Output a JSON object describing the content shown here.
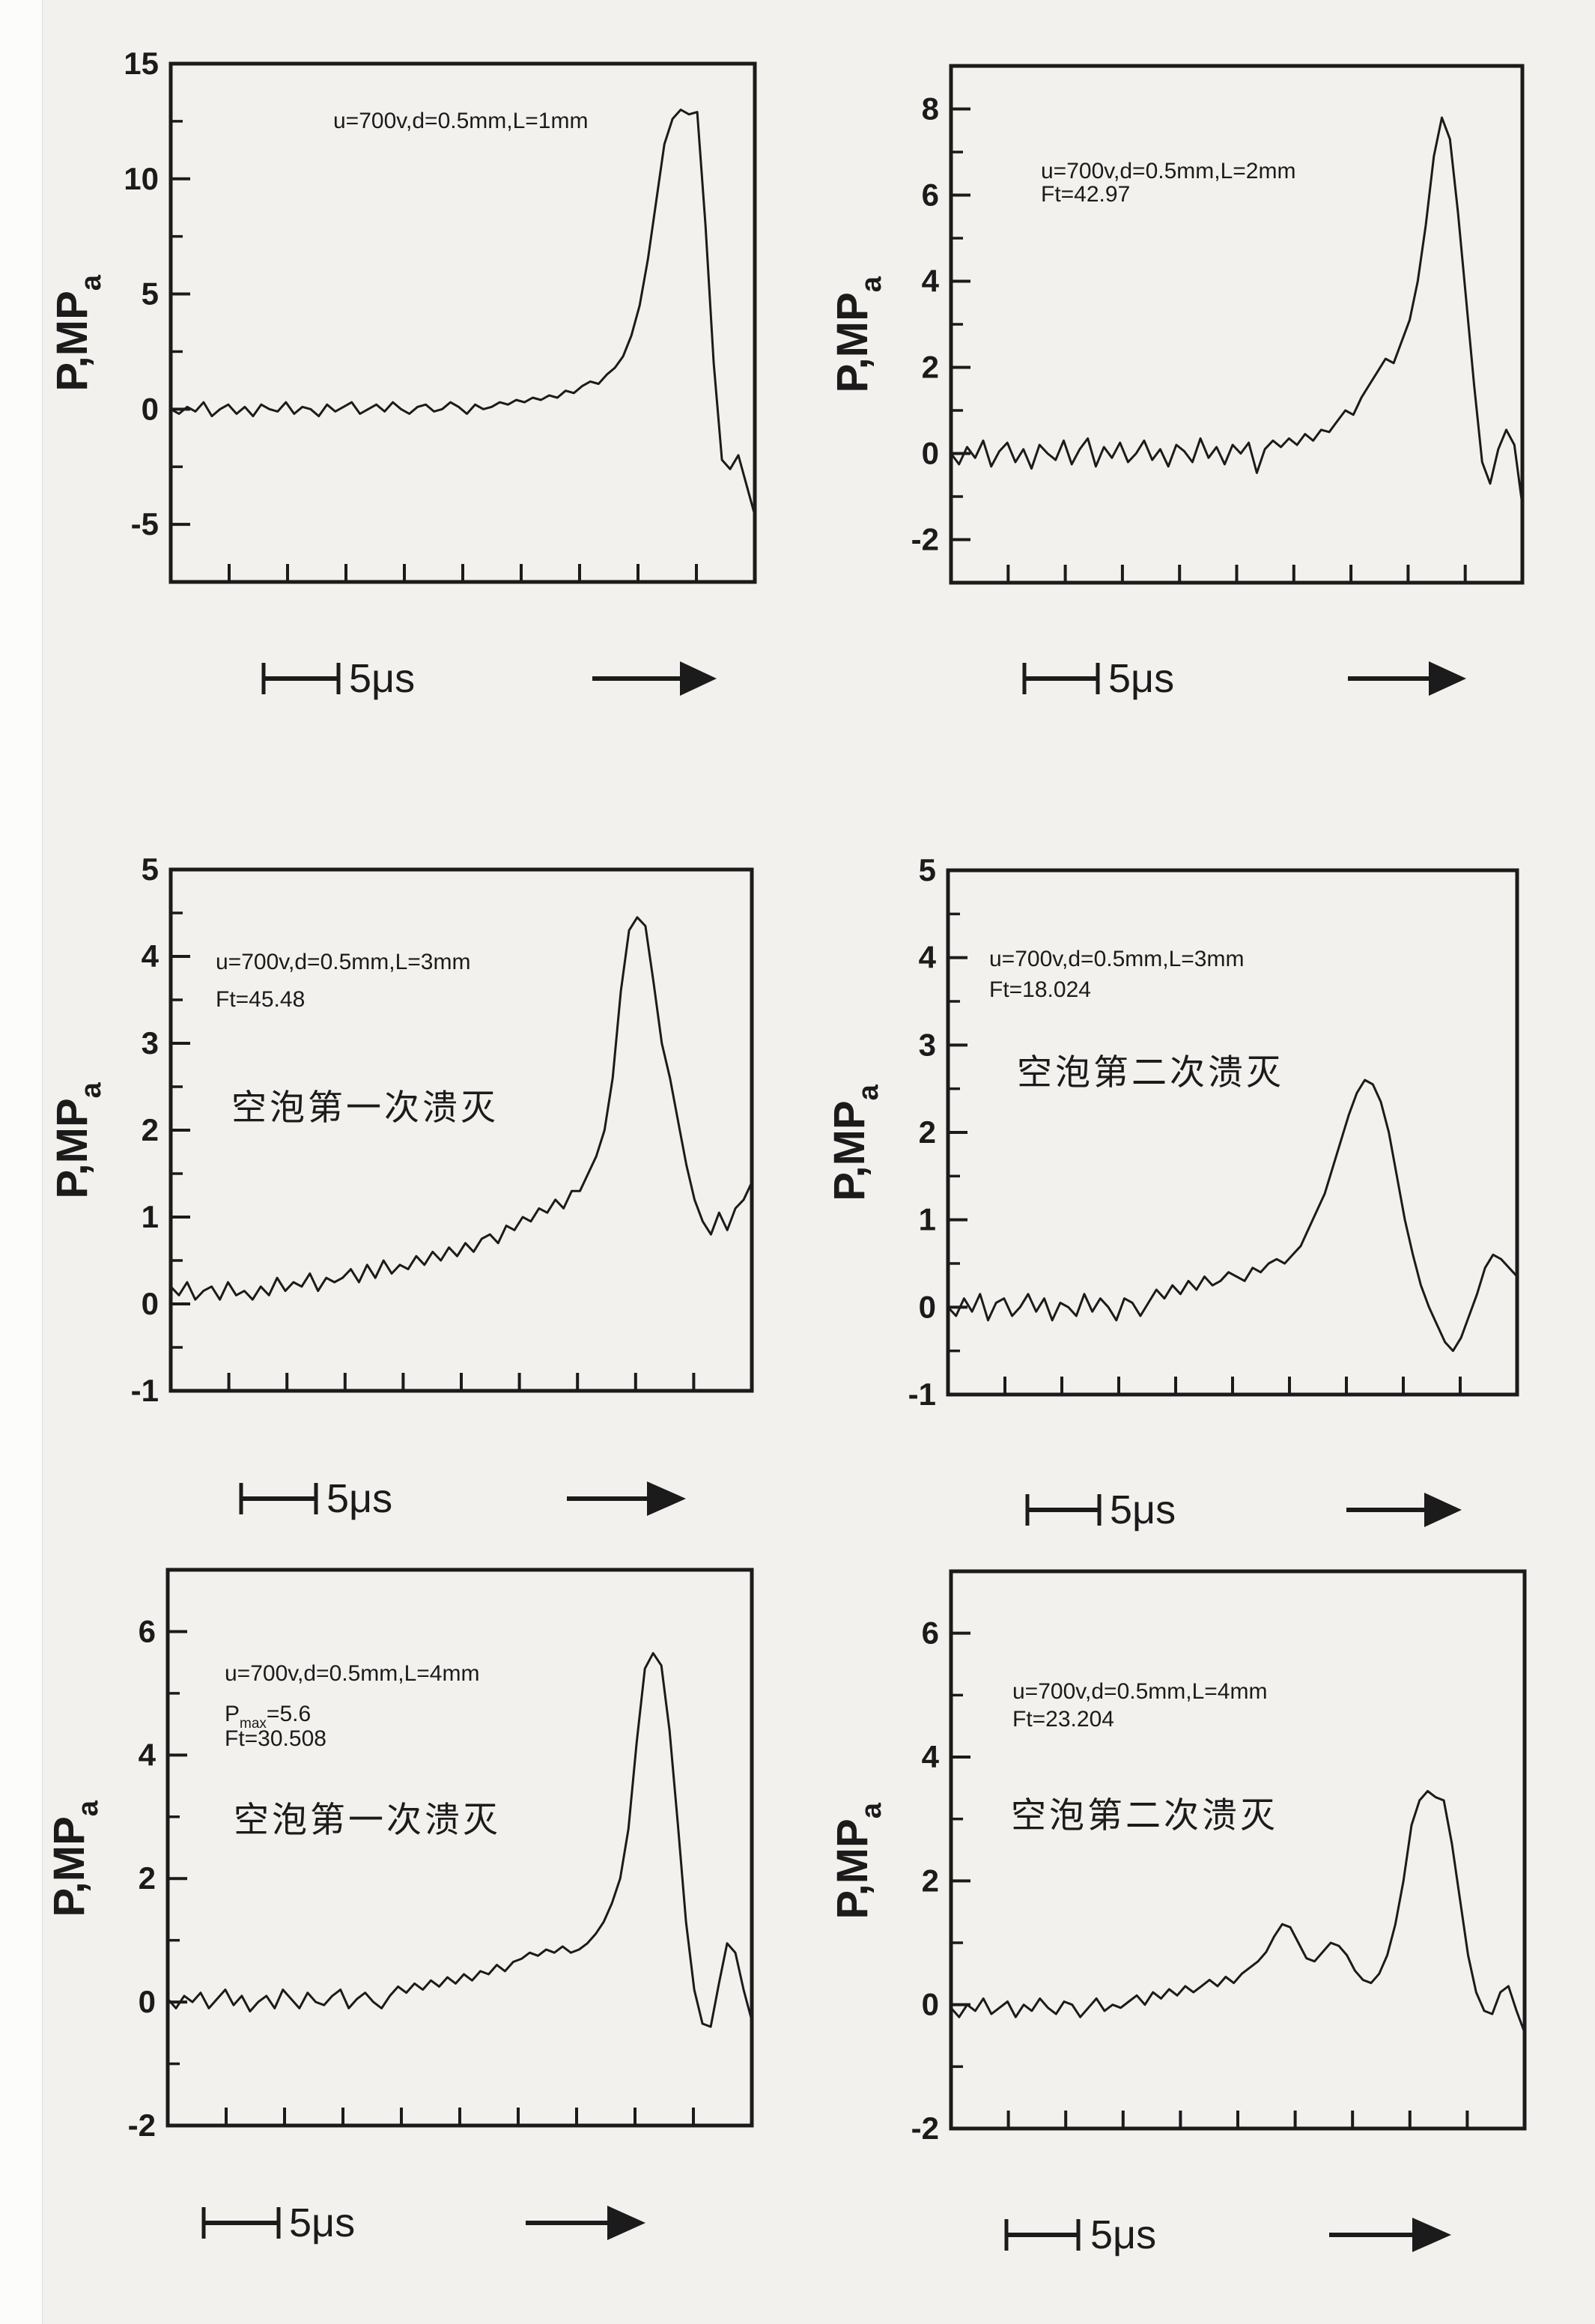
{
  "page": {
    "ink": "#1b1b1b",
    "paper_bg": "#f3f1ee",
    "edge_bg": "#fcfcfb"
  },
  "ylabel": {
    "main": "P,MP",
    "sub": "a"
  },
  "scale_label": "5μs",
  "chart_data": [
    {
      "type": "line",
      "title": "",
      "ylabel": "P,MPa",
      "xlabel": "",
      "x_scale_bar": "5μs",
      "params": [
        {
          "text": "u=700v,d=0.5mm,L=1mm"
        }
      ],
      "annotation": "",
      "ylim": [
        -7.5,
        15
      ],
      "yticks_major": [
        15,
        10,
        5,
        0,
        -5
      ],
      "yticks_minor": [
        12.5,
        7.5,
        2.5,
        -2.5
      ],
      "xticks_unlabeled": 9,
      "x_range_percent": [
        0,
        100
      ],
      "values": [
        0.0,
        -0.2,
        0.1,
        -0.1,
        0.3,
        -0.3,
        0.0,
        0.2,
        -0.2,
        0.1,
        -0.3,
        0.2,
        0.0,
        -0.1,
        0.3,
        -0.2,
        0.1,
        0.0,
        -0.3,
        0.2,
        -0.1,
        0.1,
        0.3,
        -0.2,
        0.0,
        0.2,
        -0.1,
        0.3,
        0.0,
        -0.2,
        0.1,
        0.2,
        -0.1,
        0.0,
        0.3,
        0.1,
        -0.2,
        0.2,
        0.0,
        0.1,
        0.3,
        0.2,
        0.4,
        0.3,
        0.5,
        0.4,
        0.6,
        0.5,
        0.8,
        0.7,
        1.0,
        1.2,
        1.1,
        1.5,
        1.8,
        2.3,
        3.2,
        4.5,
        6.5,
        9.0,
        11.5,
        12.6,
        13.0,
        12.8,
        12.9,
        8.0,
        2.0,
        -2.2,
        -2.6,
        -2.0,
        -3.3,
        -4.6
      ],
      "layout": {
        "param_fx": 0.278,
        "param_fys": [
          0.124
        ],
        "cn_fx": 0,
        "cn_fy": 0
      }
    },
    {
      "type": "line",
      "title": "",
      "ylabel": "P,MPa",
      "xlabel": "",
      "x_scale_bar": "5μs",
      "params": [
        {
          "text": "u=700v,d=0.5mm,L=2mm"
        },
        {
          "text": "Ft=42.97"
        }
      ],
      "annotation": "",
      "ylim": [
        -3,
        9
      ],
      "yticks_major": [
        8,
        6,
        4,
        2,
        0,
        -2
      ],
      "yticks_minor": [
        7,
        5,
        3,
        1,
        -1
      ],
      "xticks_unlabeled": 9,
      "x_range_percent": [
        0,
        100
      ],
      "values": [
        0.0,
        -0.25,
        0.15,
        -0.1,
        0.3,
        -0.3,
        0.05,
        0.25,
        -0.2,
        0.1,
        -0.35,
        0.2,
        0.0,
        -0.15,
        0.3,
        -0.25,
        0.1,
        0.35,
        -0.3,
        0.15,
        -0.1,
        0.25,
        -0.2,
        0.0,
        0.3,
        -0.15,
        0.1,
        -0.3,
        0.2,
        0.05,
        -0.2,
        0.35,
        -0.1,
        0.15,
        -0.25,
        0.2,
        0.0,
        0.25,
        -0.45,
        0.1,
        0.3,
        0.15,
        0.35,
        0.2,
        0.45,
        0.3,
        0.55,
        0.5,
        0.75,
        1.0,
        0.9,
        1.3,
        1.6,
        1.9,
        2.2,
        2.1,
        2.6,
        3.1,
        4.0,
        5.3,
        6.9,
        7.8,
        7.3,
        5.6,
        3.6,
        1.6,
        -0.2,
        -0.7,
        0.1,
        0.55,
        0.2,
        -1.2
      ],
      "layout": {
        "param_fx": 0.157,
        "param_fys": [
          0.217,
          0.263
        ],
        "cn_fx": 0,
        "cn_fy": 0
      }
    },
    {
      "type": "line",
      "title": "",
      "ylabel": "P,MPa",
      "xlabel": "",
      "x_scale_bar": "5μs",
      "params": [
        {
          "text": "u=700v,d=0.5mm,L=3mm"
        },
        {
          "text": "Ft=45.48"
        }
      ],
      "annotation": "空泡第一次溃灭",
      "ylim": [
        -1,
        5
      ],
      "yticks_major": [
        5,
        4,
        3,
        2,
        1,
        0,
        -1
      ],
      "yticks_minor": [
        4.5,
        3.5,
        2.5,
        1.5,
        0.5,
        -0.5
      ],
      "xticks_unlabeled": 9,
      "x_range_percent": [
        0,
        100
      ],
      "values": [
        0.2,
        0.1,
        0.25,
        0.05,
        0.15,
        0.2,
        0.05,
        0.25,
        0.1,
        0.15,
        0.05,
        0.2,
        0.1,
        0.3,
        0.15,
        0.25,
        0.2,
        0.35,
        0.15,
        0.3,
        0.25,
        0.3,
        0.4,
        0.25,
        0.45,
        0.3,
        0.5,
        0.35,
        0.45,
        0.4,
        0.55,
        0.45,
        0.6,
        0.5,
        0.65,
        0.55,
        0.7,
        0.6,
        0.75,
        0.8,
        0.7,
        0.9,
        0.85,
        1.0,
        0.95,
        1.1,
        1.05,
        1.2,
        1.1,
        1.3,
        1.3,
        1.5,
        1.7,
        2.0,
        2.6,
        3.6,
        4.3,
        4.45,
        4.35,
        3.7,
        3.0,
        2.6,
        2.1,
        1.6,
        1.2,
        0.95,
        0.8,
        1.05,
        0.85,
        1.1,
        1.2,
        1.4
      ],
      "layout": {
        "param_fx": 0.077,
        "param_fys": [
          0.191,
          0.263
        ],
        "cn_fx": 0.104,
        "cn_fy": 0.48
      }
    },
    {
      "type": "line",
      "title": "",
      "ylabel": "P,MPa",
      "xlabel": "",
      "x_scale_bar": "5μs",
      "params": [
        {
          "text": "u=700v,d=0.5mm,L=3mm"
        },
        {
          "text": "Ft=18.024"
        }
      ],
      "annotation": "空泡第二次溃灭",
      "ylim": [
        -1,
        5
      ],
      "yticks_major": [
        5,
        4,
        3,
        2,
        1,
        0,
        -1
      ],
      "yticks_minor": [
        4.5,
        3.5,
        2.5,
        1.5,
        0.5,
        -0.5
      ],
      "xticks_unlabeled": 9,
      "x_range_percent": [
        0,
        100
      ],
      "values": [
        0.0,
        -0.1,
        0.1,
        -0.05,
        0.15,
        -0.15,
        0.05,
        0.1,
        -0.1,
        0.0,
        0.15,
        -0.05,
        0.1,
        -0.15,
        0.05,
        0.0,
        -0.1,
        0.15,
        -0.05,
        0.1,
        0.0,
        -0.15,
        0.1,
        0.05,
        -0.1,
        0.05,
        0.2,
        0.1,
        0.25,
        0.15,
        0.3,
        0.2,
        0.35,
        0.25,
        0.3,
        0.4,
        0.35,
        0.3,
        0.45,
        0.4,
        0.5,
        0.55,
        0.5,
        0.6,
        0.7,
        0.9,
        1.1,
        1.3,
        1.6,
        1.9,
        2.2,
        2.45,
        2.6,
        2.55,
        2.35,
        2.0,
        1.5,
        1.0,
        0.6,
        0.25,
        0.0,
        -0.2,
        -0.4,
        -0.5,
        -0.35,
        -0.1,
        0.15,
        0.45,
        0.6,
        0.55,
        0.45,
        0.35
      ],
      "layout": {
        "param_fx": 0.072,
        "param_fys": [
          0.183,
          0.242
        ],
        "cn_fx": 0.121,
        "cn_fy": 0.408
      }
    },
    {
      "type": "line",
      "title": "",
      "ylabel": "P,MPa",
      "xlabel": "",
      "x_scale_bar": "5μs",
      "params": [
        {
          "text": "u=700v,d=0.5mm,L=4mm"
        },
        {
          "pre": "P",
          "sub": "max",
          "post": "=5.6"
        },
        {
          "text": "Ft=30.508"
        }
      ],
      "annotation": "空泡第一次溃灭",
      "ylim": [
        -2,
        7
      ],
      "yticks_major": [
        6,
        4,
        2,
        0,
        -2
      ],
      "yticks_minor": [
        5,
        3,
        1,
        -1
      ],
      "xticks_unlabeled": 9,
      "x_range_percent": [
        0,
        100
      ],
      "values": [
        0.05,
        -0.1,
        0.1,
        0.0,
        0.15,
        -0.1,
        0.05,
        0.2,
        -0.05,
        0.1,
        -0.15,
        0.0,
        0.1,
        -0.1,
        0.2,
        0.05,
        -0.1,
        0.15,
        0.0,
        -0.05,
        0.1,
        0.2,
        -0.1,
        0.05,
        0.15,
        0.0,
        -0.1,
        0.1,
        0.25,
        0.15,
        0.3,
        0.2,
        0.35,
        0.25,
        0.4,
        0.3,
        0.45,
        0.35,
        0.5,
        0.45,
        0.6,
        0.5,
        0.65,
        0.7,
        0.8,
        0.75,
        0.85,
        0.8,
        0.9,
        0.8,
        0.85,
        0.95,
        1.1,
        1.3,
        1.6,
        2.0,
        2.8,
        4.2,
        5.4,
        5.65,
        5.45,
        4.4,
        2.9,
        1.3,
        0.2,
        -0.35,
        -0.4,
        0.3,
        0.95,
        0.8,
        0.2,
        -0.3
      ],
      "layout": {
        "param_fx": 0.098,
        "param_fys": [
          0.2,
          0.272,
          0.317
        ],
        "cn_fx": 0.113,
        "cn_fy": 0.472
      }
    },
    {
      "type": "line",
      "title": "",
      "ylabel": "P,MPa",
      "xlabel": "",
      "x_scale_bar": "5μs",
      "params": [
        {
          "text": "u=700v,d=0.5mm,L=4mm"
        },
        {
          "text": "Ft=23.204"
        }
      ],
      "annotation": "空泡第二次溃灭",
      "ylim": [
        -2,
        7
      ],
      "yticks_major": [
        6,
        4,
        2,
        0,
        -2
      ],
      "yticks_minor": [
        5,
        3,
        1,
        -1
      ],
      "xticks_unlabeled": 9,
      "x_range_percent": [
        0,
        100
      ],
      "values": [
        -0.05,
        -0.2,
        0.0,
        -0.1,
        0.1,
        -0.15,
        -0.05,
        0.05,
        -0.2,
        0.0,
        -0.1,
        0.1,
        -0.05,
        -0.15,
        0.05,
        0.0,
        -0.2,
        -0.05,
        0.1,
        -0.1,
        0.0,
        -0.05,
        0.05,
        0.15,
        0.0,
        0.2,
        0.1,
        0.25,
        0.15,
        0.3,
        0.2,
        0.3,
        0.4,
        0.3,
        0.45,
        0.35,
        0.5,
        0.6,
        0.7,
        0.85,
        1.1,
        1.3,
        1.25,
        1.0,
        0.75,
        0.7,
        0.85,
        1.0,
        0.95,
        0.8,
        0.55,
        0.4,
        0.35,
        0.5,
        0.8,
        1.3,
        2.0,
        2.9,
        3.3,
        3.45,
        3.35,
        3.3,
        2.6,
        1.7,
        0.8,
        0.2,
        -0.1,
        -0.15,
        0.2,
        0.3,
        -0.1,
        -0.45
      ],
      "layout": {
        "param_fx": 0.107,
        "param_fys": [
          0.228,
          0.278
        ],
        "cn_fx": 0.105,
        "cn_fy": 0.46
      }
    }
  ]
}
